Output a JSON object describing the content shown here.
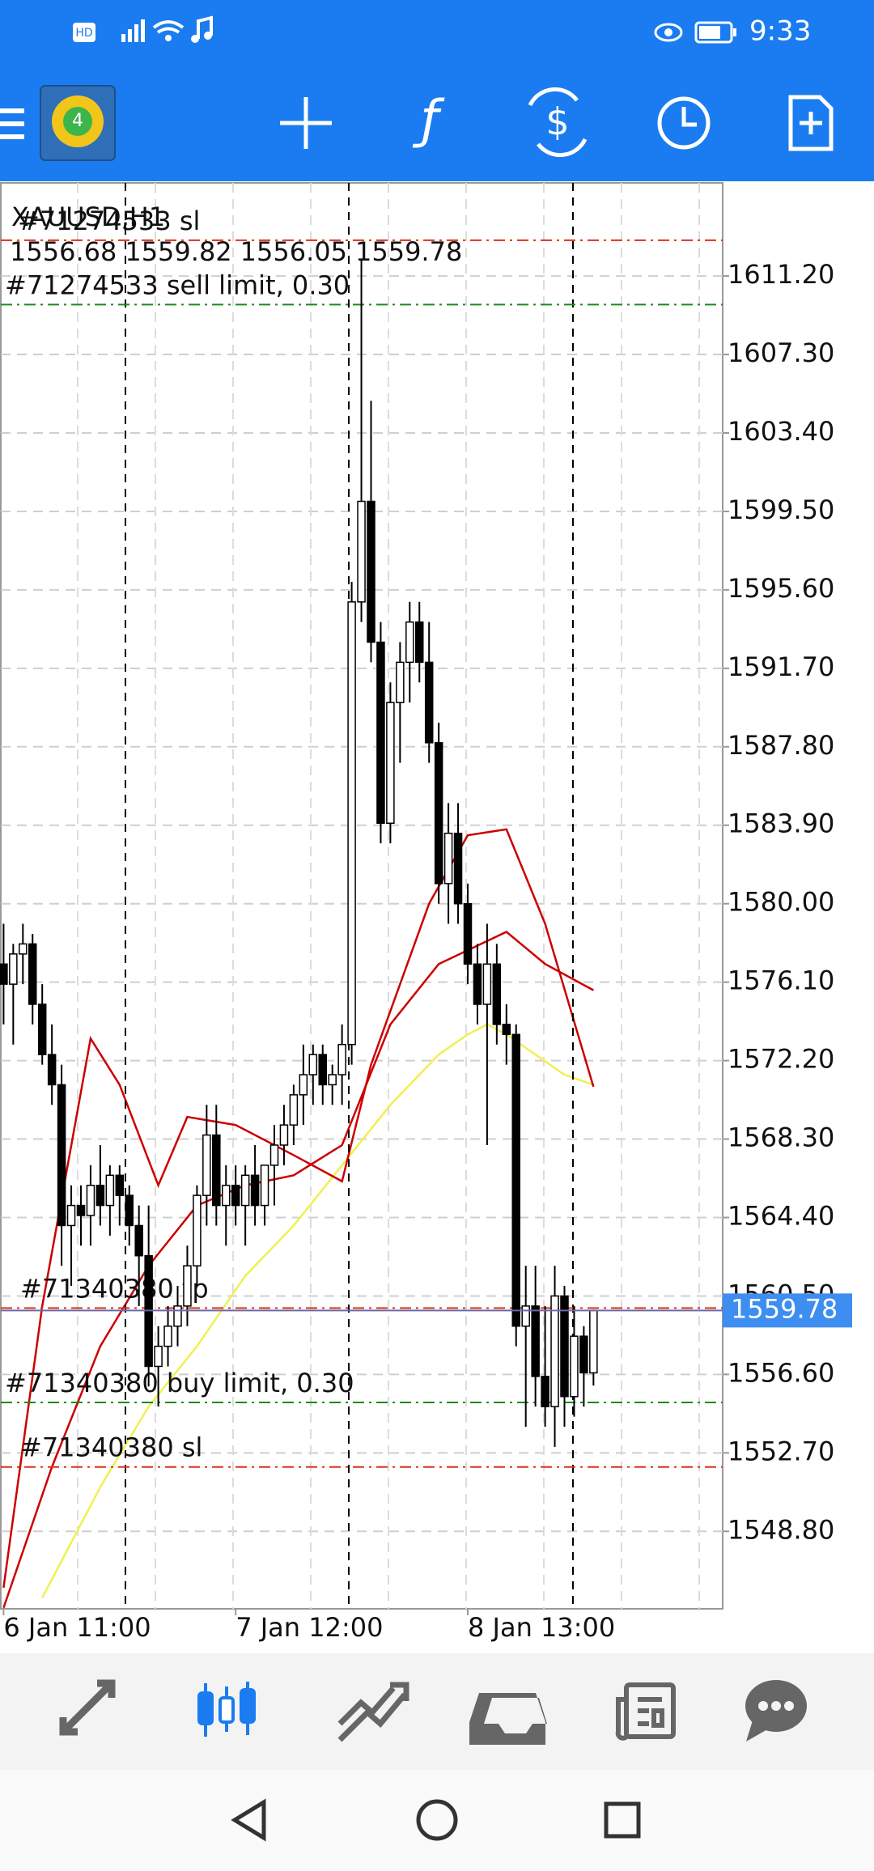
{
  "status_bar": {
    "time": "9:33"
  },
  "chart_data": {
    "type": "candlestick",
    "title": "XAUUSD,H1",
    "ohlc": [
      1556.68,
      1559.82,
      1556.05,
      1559.78
    ],
    "categories": [
      "6 Jan 11:00",
      null,
      null,
      null,
      null,
      null,
      null,
      null,
      null,
      null,
      null,
      null,
      null,
      null,
      null,
      null,
      null,
      null,
      null,
      null,
      null,
      null,
      null,
      null,
      "7 Jan 12:00",
      null,
      null,
      null,
      null,
      null,
      null,
      null,
      null,
      null,
      null,
      null,
      null,
      null,
      null,
      null,
      null,
      null,
      null,
      null,
      null,
      null,
      null,
      null,
      "8 Jan 13:00",
      null,
      null,
      null,
      null,
      null,
      null,
      null,
      null,
      null,
      null,
      null,
      null,
      null
    ],
    "open": [
      1577,
      1576,
      1577.5,
      1578,
      1575,
      1572.5,
      1571,
      1564,
      1565,
      1564.5,
      1566,
      1565,
      1566.5,
      1565.5,
      1564,
      1562.5,
      1557,
      1558,
      1559,
      1560,
      1562,
      1565.5,
      1568.5,
      1565,
      1566,
      1565,
      1566.5,
      1565,
      1567,
      1568,
      1569,
      1570.5,
      1571.5,
      1572.5,
      1571,
      1571.5,
      1573,
      1595,
      1600,
      1593,
      1584,
      1590,
      1592,
      1594,
      1592,
      1588,
      1581,
      1583.5,
      1580,
      1577,
      1575,
      1577,
      1574,
      1573.5,
      1559,
      1560,
      1556.5,
      1555,
      1560.5,
      1555.5,
      1558.5,
      1556.68
    ],
    "high": [
      1579,
      1578,
      1579,
      1578.5,
      1576,
      1574,
      1572,
      1566,
      1566,
      1567,
      1568,
      1567,
      1567,
      1566,
      1565,
      1565,
      1559,
      1560,
      1561,
      1563,
      1566,
      1570,
      1570,
      1567,
      1567,
      1567,
      1568,
      1567,
      1569,
      1570,
      1571,
      1573,
      1573,
      1573,
      1572,
      1574,
      1596,
      1612,
      1605,
      1594,
      1591,
      1593,
      1595,
      1595,
      1594,
      1589,
      1585,
      1585,
      1581,
      1578,
      1579,
      1578,
      1575,
      1574,
      1562,
      1562,
      1560,
      1562,
      1561,
      1560,
      1559,
      1559.82
    ],
    "low": [
      1574,
      1573,
      1576,
      1574,
      1572,
      1570,
      1562,
      1561,
      1563,
      1563,
      1564,
      1563.5,
      1564,
      1563,
      1560,
      1556,
      1555,
      1557,
      1558,
      1559,
      1561,
      1564,
      1564,
      1563,
      1564,
      1563,
      1564,
      1564,
      1565,
      1567,
      1568,
      1569,
      1570,
      1570,
      1570,
      1570,
      1572,
      1594,
      1592,
      1583,
      1583,
      1587,
      1590,
      1591,
      1587,
      1580,
      1579,
      1579,
      1576,
      1574,
      1568,
      1573,
      1572,
      1558,
      1554,
      1555,
      1554,
      1553,
      1554,
      1554.5,
      1555,
      1556.05
    ],
    "close": [
      1576,
      1577.5,
      1578,
      1575,
      1572.5,
      1571,
      1564,
      1565,
      1564.5,
      1566,
      1565,
      1566.5,
      1565.5,
      1564,
      1562.5,
      1557,
      1558,
      1559,
      1560,
      1562,
      1565.5,
      1568.5,
      1565,
      1566,
      1565,
      1566.5,
      1565,
      1567,
      1568,
      1569,
      1570.5,
      1571.5,
      1572.5,
      1571,
      1571.5,
      1573,
      1595,
      1600,
      1593,
      1584,
      1590,
      1592,
      1594,
      1592,
      1588,
      1581,
      1583.5,
      1580,
      1577,
      1575,
      1577,
      1574,
      1573.5,
      1559,
      1560,
      1556.5,
      1555,
      1560.5,
      1555.5,
      1558.5,
      1556.68,
      1559.78
    ],
    "up_color": "#ffffff",
    "down_color": "#000000",
    "ylim": [
      1544.95,
      1615.83
    ],
    "yticks": [
      {
        "value": 1611.2,
        "label": "1611.20"
      },
      {
        "value": 1607.3,
        "label": "1607.30"
      },
      {
        "value": 1603.4,
        "label": "1603.40"
      },
      {
        "value": 1599.5,
        "label": "1599.50"
      },
      {
        "value": 1595.6,
        "label": "1595.60"
      },
      {
        "value": 1591.7,
        "label": "1591.70"
      },
      {
        "value": 1587.8,
        "label": "1587.80"
      },
      {
        "value": 1583.9,
        "label": "1583.90"
      },
      {
        "value": 1580,
        "label": "1580.00"
      },
      {
        "value": 1576.1,
        "label": "1576.10"
      },
      {
        "value": 1572.2,
        "label": "1572.20"
      },
      {
        "value": 1568.3,
        "label": "1568.30"
      },
      {
        "value": 1564.4,
        "label": "1564.40"
      },
      {
        "value": 1560.5,
        "label": "1560.50"
      },
      {
        "value": 1556.6,
        "label": "1556.60"
      },
      {
        "value": 1552.7,
        "label": "1552.70"
      },
      {
        "value": 1548.8,
        "label": "1548.80"
      }
    ],
    "grid": true,
    "last_price": 1559.78,
    "lines": [
      {
        "color": "#f0f050",
        "x": [
          4,
          10,
          15,
          20,
          25,
          30,
          35,
          40,
          45,
          48,
          50,
          52,
          55,
          58,
          61
        ],
        "values": [
          1545.5,
          1551,
          1555,
          1558,
          1561.5,
          1564,
          1567,
          1570,
          1572.5,
          1573.5,
          1574,
          1573.5,
          1572.5,
          1571.5,
          1571
        ]
      },
      {
        "color": "#cc0000",
        "x": [
          0,
          4,
          9,
          12,
          16,
          19,
          24,
          30,
          35,
          38,
          44,
          48,
          52,
          56,
          61
        ],
        "values": [
          1546,
          1560,
          1573.3,
          1571,
          1566,
          1569.4,
          1569,
          1567.5,
          1566.2,
          1572,
          1580,
          1583.4,
          1583.7,
          1579,
          1570.9
        ]
      },
      {
        "color": "#cc0000",
        "x": [
          0,
          5,
          10,
          15,
          20,
          25,
          30,
          35,
          40,
          45,
          52,
          56,
          61
        ],
        "values": [
          1545,
          1552,
          1558,
          1562,
          1565,
          1566,
          1566.5,
          1568,
          1574,
          1577,
          1578.6,
          1577,
          1575.7
        ]
      }
    ],
    "orders": [
      {
        "label": "#71274533 sl",
        "price": 1612.98,
        "color": "#e0301e"
      },
      {
        "label": "#71274533 sell limit, 0.30",
        "price": 1609.78,
        "color": "#1a8a1a"
      },
      {
        "label": "#71340380 tp",
        "price": 1559.9,
        "color": "#e0301e"
      },
      {
        "label": "#71340380 buy limit, 0.30",
        "price": 1555.21,
        "color": "#1a8a1a"
      },
      {
        "label": "#71340380 sl",
        "price": 1552.0,
        "color": "#e0301e"
      }
    ]
  }
}
